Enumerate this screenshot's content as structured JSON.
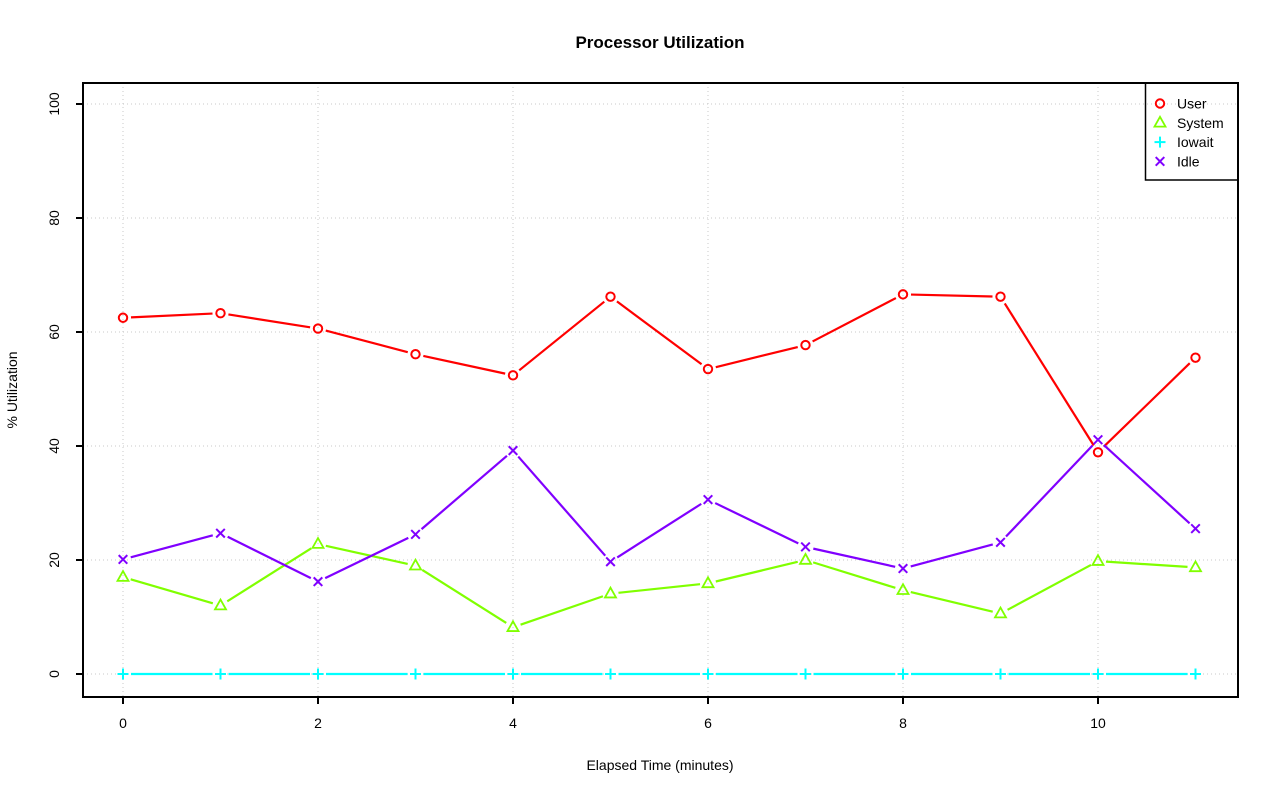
{
  "chart_data": {
    "type": "line",
    "title": "Processor Utilization",
    "xlabel": "Elapsed Time (minutes)",
    "ylabel": "% Utilization",
    "x": [
      0,
      1,
      2,
      3,
      4,
      5,
      6,
      7,
      8,
      9,
      10,
      11
    ],
    "x_ticks": [
      0,
      2,
      4,
      6,
      8,
      10
    ],
    "y_ticks": [
      0,
      20,
      40,
      60,
      80,
      100
    ],
    "xlim": [
      0,
      11
    ],
    "ylim": [
      0,
      100
    ],
    "grid": "dotted",
    "grid_color": "#c9c9c9",
    "axis_color": "#000000",
    "legend_position": "top-right",
    "legend_border": true,
    "marker_style": "open",
    "line_type": "points-and-segments",
    "series": [
      {
        "name": "User",
        "color": "#FF0000",
        "marker": "circle",
        "values": [
          62.5,
          63.3,
          60.6,
          56.1,
          52.4,
          66.2,
          53.5,
          57.7,
          66.6,
          66.2,
          38.9,
          55.5
        ]
      },
      {
        "name": "System",
        "color": "#80FF00",
        "marker": "triangle",
        "values": [
          17.0,
          12.0,
          22.8,
          19.0,
          8.2,
          14.1,
          15.9,
          20.0,
          14.7,
          10.6,
          19.8,
          18.7
        ]
      },
      {
        "name": "Iowait",
        "color": "#00FFFF",
        "marker": "plus",
        "values": [
          0,
          0,
          0,
          0,
          0,
          0,
          0,
          0,
          0,
          0,
          0,
          0
        ]
      },
      {
        "name": "Idle",
        "color": "#8000FF",
        "marker": "x",
        "values": [
          20.1,
          24.7,
          16.2,
          24.5,
          39.2,
          19.7,
          30.6,
          22.3,
          18.5,
          23.1,
          41.1,
          25.5
        ]
      }
    ]
  }
}
